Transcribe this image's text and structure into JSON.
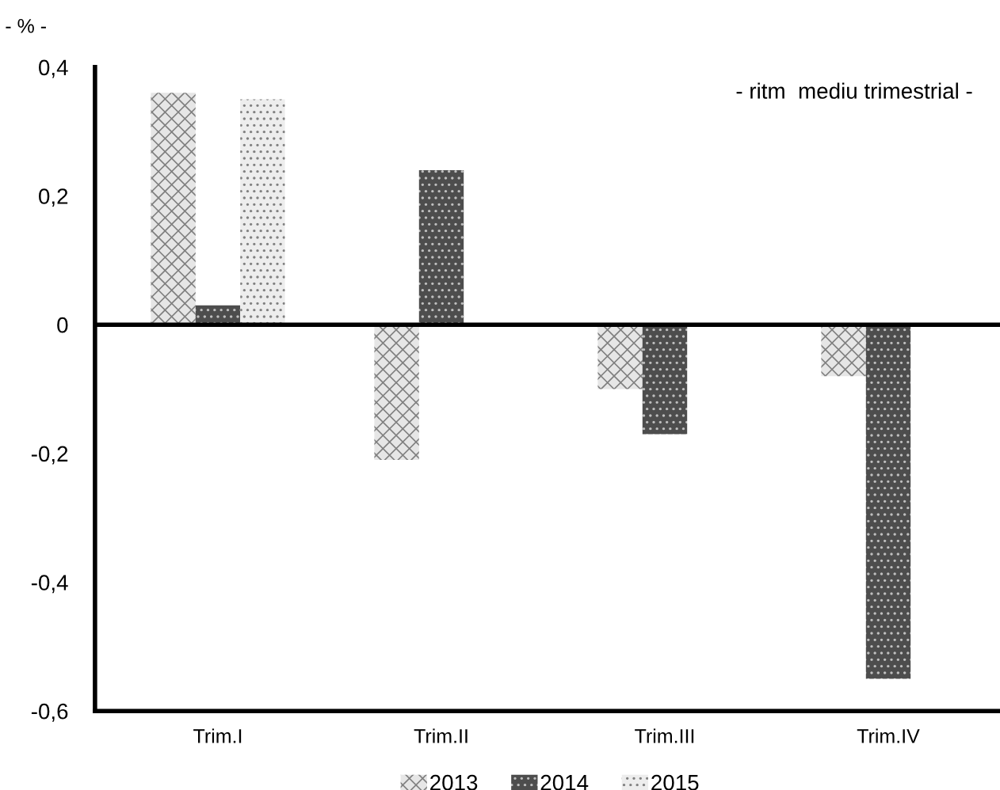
{
  "chart_data": {
    "type": "bar",
    "ylabel": "- % -",
    "annotations": [
      "- ritm  mediu trimestrial -"
    ],
    "categories": [
      "Trim.I",
      "Trim.II",
      "Trim.III",
      "Trim.IV"
    ],
    "series": [
      {
        "name": "2013",
        "color": "#e6e6e6",
        "values": [
          0.36,
          -0.21,
          -0.1,
          -0.08
        ]
      },
      {
        "name": "2014",
        "color": "#4d4d4d",
        "values": [
          0.03,
          0.24,
          -0.17,
          -0.55
        ]
      },
      {
        "name": "2015",
        "color": "#ededed",
        "values": [
          0.35,
          null,
          null,
          null
        ]
      }
    ],
    "ylim": [
      -0.6,
      0.4
    ],
    "yticks": [
      {
        "value": -0.6,
        "label": "-0,6"
      },
      {
        "value": -0.4,
        "label": "-0,4"
      },
      {
        "value": -0.2,
        "label": "-0,2"
      },
      0,
      {
        "value": 0.2,
        "label": "0,2"
      },
      {
        "value": 0.4,
        "label": "0,4"
      }
    ],
    "ref_lines": [
      {
        "axis": "y",
        "value": 0,
        "label": null,
        "color": "#000000"
      }
    ],
    "grid": false,
    "legend": "bottom"
  }
}
